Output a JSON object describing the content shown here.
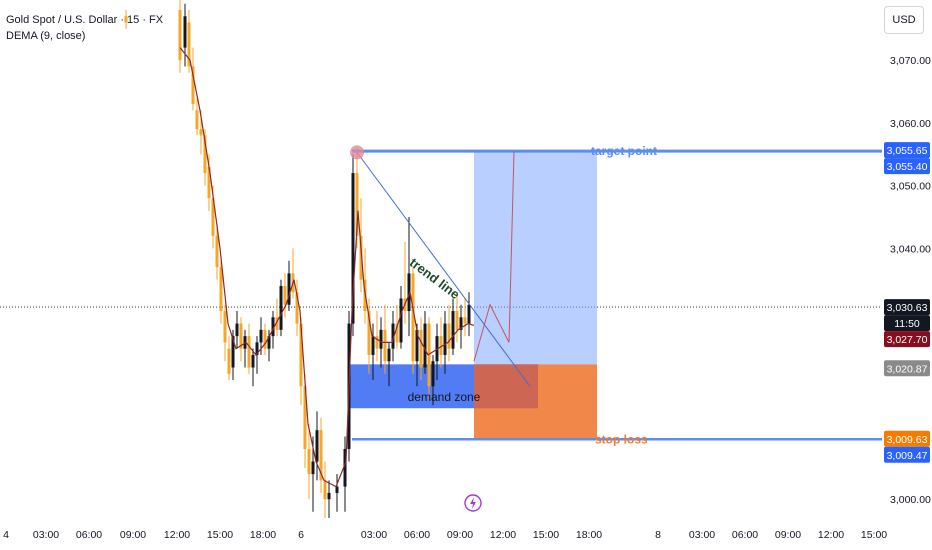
{
  "legend": {
    "symbol": "Gold Spot / U.S. Dollar · 15 · FX",
    "indicator": "DEMA (9, close)"
  },
  "currency_button": "USD",
  "colors": {
    "up": "#131722",
    "down": "#f5a623",
    "dema": "#8b2a2a",
    "target": "#5b8ef0",
    "stop": "#f07a35",
    "trend": "#3f6fd8",
    "demand": "#3f6ef2"
  },
  "chart_data": {
    "type": "candlestick",
    "ylim": [
      2997,
      3078
    ],
    "y_ticks": [
      3000,
      3040,
      3050,
      3060,
      3070
    ],
    "y_tick_labels": [
      "3,000.00",
      "3,040.00",
      "3,050.00",
      "3,060.00",
      "3,070.00"
    ],
    "x_tick_labels": [
      {
        "label": "4",
        "x": 6
      },
      {
        "label": "03:00",
        "x": 46
      },
      {
        "label": "06:00",
        "x": 89
      },
      {
        "label": "09:00",
        "x": 133
      },
      {
        "label": "12:00",
        "x": 177
      },
      {
        "label": "15:00",
        "x": 220
      },
      {
        "label": "18:00",
        "x": 263
      },
      {
        "label": "6",
        "x": 301
      },
      {
        "label": "03:00",
        "x": 374
      },
      {
        "label": "06:00",
        "x": 417
      },
      {
        "label": "09:00",
        "x": 460
      },
      {
        "label": "12:00",
        "x": 503
      },
      {
        "label": "15:00",
        "x": 546
      },
      {
        "label": "18:00",
        "x": 589
      },
      {
        "label": "8",
        "x": 658
      },
      {
        "label": "03:00",
        "x": 702
      },
      {
        "label": "06:00",
        "x": 745
      },
      {
        "label": "09:00",
        "x": 788
      },
      {
        "label": "12:00",
        "x": 831
      },
      {
        "label": "15:00",
        "x": 874
      }
    ],
    "price_labels": [
      {
        "value": 3055.65,
        "text": "3,055.65",
        "bg": "#2962ff",
        "color": "#ffffff"
      },
      {
        "value": 3055.4,
        "text": "3,055.40",
        "bg": "#2962ff",
        "color": "#ffffff"
      },
      {
        "value": 3030.63,
        "text": "3,030.63",
        "bg": "#131722",
        "color": "#ffffff"
      },
      {
        "value": 3028.5,
        "text": "11:50",
        "bg": "#131722",
        "color": "#ffffff"
      },
      {
        "value": 3027.7,
        "text": "3,027.70",
        "bg": "#880e1e",
        "color": "#ffffff"
      },
      {
        "value": 3020.87,
        "text": "3,020.87",
        "bg": "#8a8a8a",
        "color": "#ffffff"
      },
      {
        "value": 3009.63,
        "text": "3,009.63",
        "bg": "#f57c00",
        "color": "#ffffff"
      },
      {
        "value": 3009.47,
        "text": "3,009.47",
        "bg": "#2962ff",
        "color": "#ffffff"
      }
    ],
    "current_price": 3030.63,
    "target_price": 3055.5,
    "stop_price": 3009.55,
    "entry_price": 3021.5,
    "annotations": {
      "target": "target point",
      "stop": "stop loss",
      "trend": "trend line",
      "demand": "demand zone"
    },
    "demand_zone": {
      "x_from": 350,
      "x_to": 538,
      "y_from": 3014.5,
      "y_to": 3021.5
    },
    "long_position": {
      "x_from": 474,
      "x_to": 597,
      "entry": 3021.5,
      "target": 3055.5,
      "stop": 3009.55
    },
    "trend_line": [
      {
        "x": 357,
        "y": 3055.3
      },
      {
        "x": 530,
        "y": 3018
      }
    ],
    "projection": [
      {
        "x": 474,
        "y": 3022
      },
      {
        "x": 490,
        "y": 3031
      },
      {
        "x": 509,
        "y": 3025
      },
      {
        "x": 514,
        "y": 3055.5
      }
    ],
    "marker": {
      "x": 357,
      "y": 3055.3
    },
    "event_icon_x": 473,
    "candles": [
      [
        126,
        3077,
        3078,
        3075,
        3076
      ],
      [
        180,
        3078,
        3080,
        3068,
        3070
      ],
      [
        185,
        3072,
        3079,
        3069,
        3077
      ],
      [
        189,
        3076,
        3078,
        3068,
        3069
      ],
      [
        193,
        3069,
        3072,
        3062,
        3063
      ],
      [
        197,
        3062,
        3064,
        3058,
        3059
      ],
      [
        201,
        3059,
        3062,
        3055,
        3058
      ],
      [
        205,
        3058,
        3059,
        3050,
        3052
      ],
      [
        209,
        3053,
        3055,
        3046,
        3048
      ],
      [
        213,
        3048,
        3050,
        3040,
        3042
      ],
      [
        217,
        3042,
        3044,
        3035,
        3037
      ],
      [
        221,
        3037,
        3038,
        3028,
        3030
      ],
      [
        225,
        3030,
        3031,
        3022,
        3025
      ],
      [
        229,
        3024,
        3026,
        3019,
        3020
      ],
      [
        233,
        3021,
        3027,
        3019,
        3026
      ],
      [
        237,
        3026,
        3030,
        3024,
        3028
      ],
      [
        241,
        3028,
        3029,
        3022,
        3024
      ],
      [
        245,
        3024,
        3027,
        3021,
        3026
      ],
      [
        249,
        3026,
        3028,
        3020,
        3021
      ],
      [
        253,
        3021,
        3024,
        3018,
        3023
      ],
      [
        257,
        3023,
        3026,
        3020,
        3025
      ],
      [
        261,
        3025,
        3029,
        3023,
        3027
      ],
      [
        265,
        3027,
        3028,
        3023,
        3024
      ],
      [
        269,
        3024,
        3027,
        3022,
        3026
      ],
      [
        273,
        3026,
        3030,
        3024,
        3029
      ],
      [
        277,
        3029,
        3032,
        3026,
        3027
      ],
      [
        281,
        3027,
        3035,
        3026,
        3034
      ],
      [
        285,
        3034,
        3036,
        3029,
        3031
      ],
      [
        289,
        3031,
        3038,
        3030,
        3036
      ],
      [
        293,
        3036,
        3040,
        3032,
        3033
      ],
      [
        297,
        3033,
        3035,
        3026,
        3028
      ],
      [
        301,
        3028,
        3029,
        3015,
        3018
      ],
      [
        305,
        3018,
        3020,
        3005,
        3008
      ],
      [
        309,
        3008,
        3012,
        3000,
        3004
      ],
      [
        313,
        3004,
        3010,
        2998,
        3006
      ],
      [
        317,
        3006,
        3014,
        3003,
        3011
      ],
      [
        321,
        3011,
        3013,
        3001,
        3003
      ],
      [
        325,
        3003,
        3006,
        2997,
        3000
      ],
      [
        329,
        3000,
        3003,
        2997,
        3001
      ],
      [
        337,
        3001,
        3004,
        2998,
        3002
      ],
      [
        345,
        3002,
        3010,
        2998,
        3008
      ],
      [
        349,
        3008,
        3030,
        3006,
        3028
      ],
      [
        353,
        3028,
        3055,
        3026,
        3052
      ],
      [
        357,
        3052,
        3056,
        3040,
        3042
      ],
      [
        361,
        3042,
        3048,
        3033,
        3035
      ],
      [
        365,
        3035,
        3040,
        3028,
        3030
      ],
      [
        369,
        3030,
        3032,
        3020,
        3023
      ],
      [
        373,
        3023,
        3028,
        3019,
        3026
      ],
      [
        377,
        3026,
        3030,
        3022,
        3024
      ],
      [
        381,
        3024,
        3029,
        3021,
        3027
      ],
      [
        385,
        3027,
        3031,
        3020,
        3022
      ],
      [
        389,
        3022,
        3025,
        3018,
        3024
      ],
      [
        393,
        3024,
        3030,
        3022,
        3028
      ],
      [
        397,
        3028,
        3031,
        3024,
        3025
      ],
      [
        401,
        3025,
        3034,
        3024,
        3032
      ],
      [
        405,
        3032,
        3041,
        3028,
        3030
      ],
      [
        409,
        3030,
        3045,
        3026,
        3036
      ],
      [
        413,
        3036,
        3037,
        3020,
        3022
      ],
      [
        417,
        3022,
        3028,
        3018,
        3027
      ],
      [
        421,
        3027,
        3029,
        3019,
        3021
      ],
      [
        425,
        3021,
        3030,
        3020,
        3028
      ],
      [
        429,
        3028,
        3029,
        3016,
        3018
      ],
      [
        433,
        3018,
        3023,
        3015,
        3022
      ],
      [
        437,
        3022,
        3028,
        3019,
        3026
      ],
      [
        441,
        3026,
        3029,
        3021,
        3023
      ],
      [
        445,
        3023,
        3030,
        3020,
        3028
      ],
      [
        449,
        3028,
        3031,
        3022,
        3024
      ],
      [
        453,
        3024,
        3032,
        3023,
        3030
      ],
      [
        457,
        3030,
        3033,
        3025,
        3027
      ],
      [
        461,
        3027,
        3031,
        3024,
        3029
      ],
      [
        465,
        3029,
        3032,
        3026,
        3028
      ],
      [
        469,
        3028,
        3033,
        3026,
        3031
      ]
    ],
    "dema": [
      [
        180,
        3072
      ],
      [
        190,
        3070
      ],
      [
        200,
        3062
      ],
      [
        210,
        3052
      ],
      [
        220,
        3040
      ],
      [
        228,
        3028
      ],
      [
        236,
        3024
      ],
      [
        246,
        3025
      ],
      [
        256,
        3023
      ],
      [
        266,
        3025
      ],
      [
        276,
        3028
      ],
      [
        286,
        3031
      ],
      [
        294,
        3035
      ],
      [
        300,
        3030
      ],
      [
        308,
        3012
      ],
      [
        316,
        3006
      ],
      [
        324,
        3003
      ],
      [
        336,
        3002
      ],
      [
        346,
        3006
      ],
      [
        352,
        3030
      ],
      [
        358,
        3046
      ],
      [
        364,
        3034
      ],
      [
        372,
        3026
      ],
      [
        382,
        3025
      ],
      [
        392,
        3025
      ],
      [
        402,
        3030
      ],
      [
        410,
        3033
      ],
      [
        418,
        3026
      ],
      [
        428,
        3023
      ],
      [
        438,
        3024
      ],
      [
        448,
        3025
      ],
      [
        458,
        3027
      ],
      [
        468,
        3028
      ],
      [
        474,
        3027.7
      ]
    ]
  }
}
